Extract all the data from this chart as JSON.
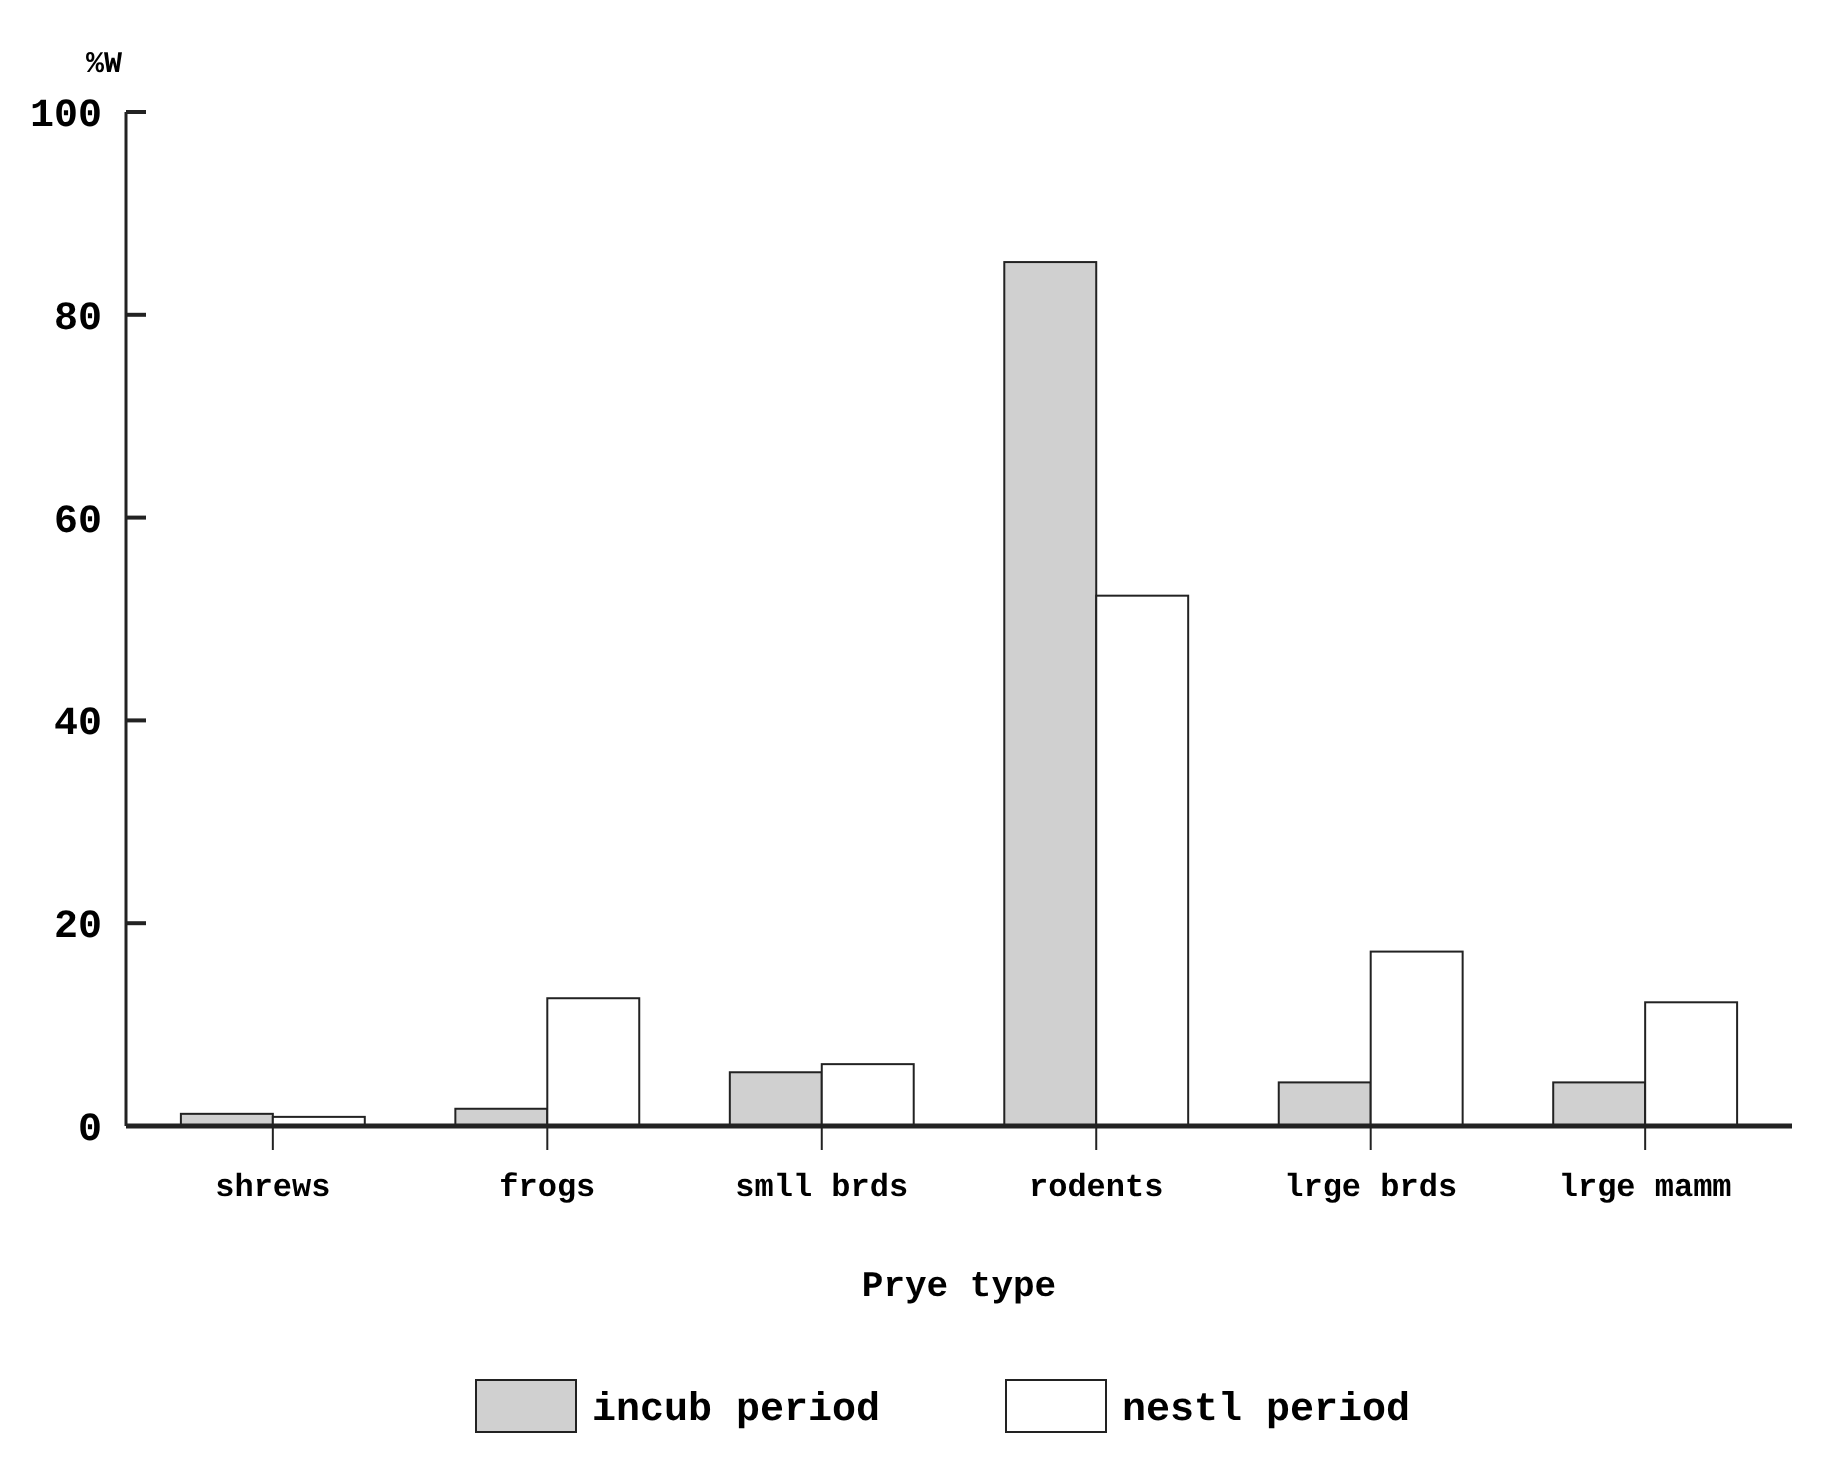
{
  "chart_data": {
    "type": "bar",
    "xlabel": "Prye type",
    "ylabel": "%W",
    "categories": [
      "shrews",
      "frogs",
      "smll brds",
      "rodents",
      "lrge brds",
      "lrge mamm"
    ],
    "series": [
      {
        "name": "incub period",
        "color": "#d0d0d0",
        "values": [
          1.2,
          1.7,
          5.3,
          85.2,
          4.3,
          4.3
        ]
      },
      {
        "name": "nestl period",
        "color": "#ffffff",
        "values": [
          0.9,
          12.6,
          6.1,
          52.3,
          17.2,
          12.2
        ]
      }
    ],
    "ylim": [
      0,
      100
    ],
    "yticks": [
      0,
      20,
      40,
      60,
      80,
      100
    ],
    "grid": false,
    "legend": "bottom"
  }
}
